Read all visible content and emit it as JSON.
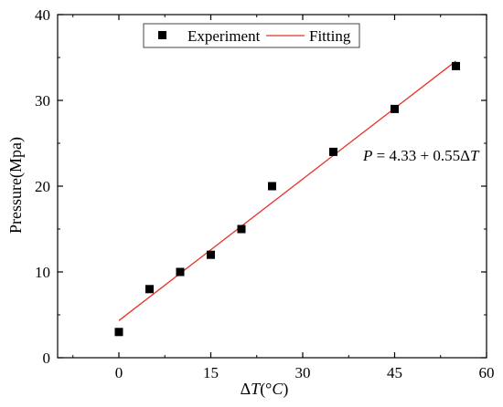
{
  "chart_data": {
    "type": "scatter",
    "xlabel_parts": [
      "Δ",
      "T",
      "(°",
      "C",
      ")"
    ],
    "ylabel": "Pressure(Mpa)",
    "xlim": [
      -10,
      60
    ],
    "ylim": [
      0,
      40
    ],
    "xticks": [
      0,
      15,
      30,
      45,
      60
    ],
    "yticks": [
      0,
      10,
      20,
      30,
      40
    ],
    "grid": false,
    "legend_position": "top-center",
    "series": [
      {
        "name": "Experiment",
        "type": "scatter",
        "marker": "square",
        "color": "#000000",
        "x": [
          0,
          5,
          10,
          15,
          20,
          25,
          35,
          45,
          55
        ],
        "y": [
          3,
          8,
          10,
          12,
          15,
          20,
          24,
          29,
          34
        ]
      },
      {
        "name": "Fitting",
        "type": "line",
        "color": "#e8332a",
        "x": [
          0,
          55
        ],
        "y": [
          4.33,
          34.58
        ]
      }
    ],
    "annotation_parts": [
      "P",
      " = 4.33 + 0.55Δ",
      "T"
    ]
  }
}
